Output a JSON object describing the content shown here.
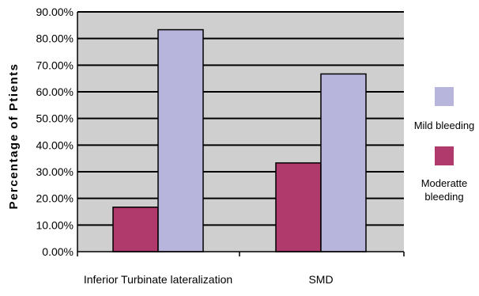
{
  "colors": {
    "plot_background": "#cfcfcf",
    "gridline": "#000000",
    "moderate_bleeding": "#b03a6b",
    "mild_bleeding": "#b8b5dd",
    "bar_outline": "#000000"
  },
  "chart_data": {
    "type": "bar",
    "title": "",
    "xlabel": "",
    "ylabel": "Percentage of Ptients",
    "ylim": [
      0,
      90
    ],
    "y_ticks": [
      "0.00%",
      "10.00%",
      "20.00%",
      "30.00%",
      "40.00%",
      "50.00%",
      "60.00%",
      "70.00%",
      "80.00%",
      "90.00%"
    ],
    "y_tick_values": [
      0,
      10,
      20,
      30,
      40,
      50,
      60,
      70,
      80,
      90
    ],
    "categories": [
      "Inferior Turbinate lateralization",
      "SMD"
    ],
    "series": [
      {
        "name": "Moderate bleeding",
        "legend_label": [
          "Moderatte",
          "bleeding"
        ],
        "values": [
          16.7,
          33.3
        ]
      },
      {
        "name": "Mild bleeding",
        "legend_label": [
          "Mild bleeding"
        ],
        "values": [
          83.3,
          66.7
        ]
      }
    ],
    "grid": true,
    "legend_position": "right"
  }
}
